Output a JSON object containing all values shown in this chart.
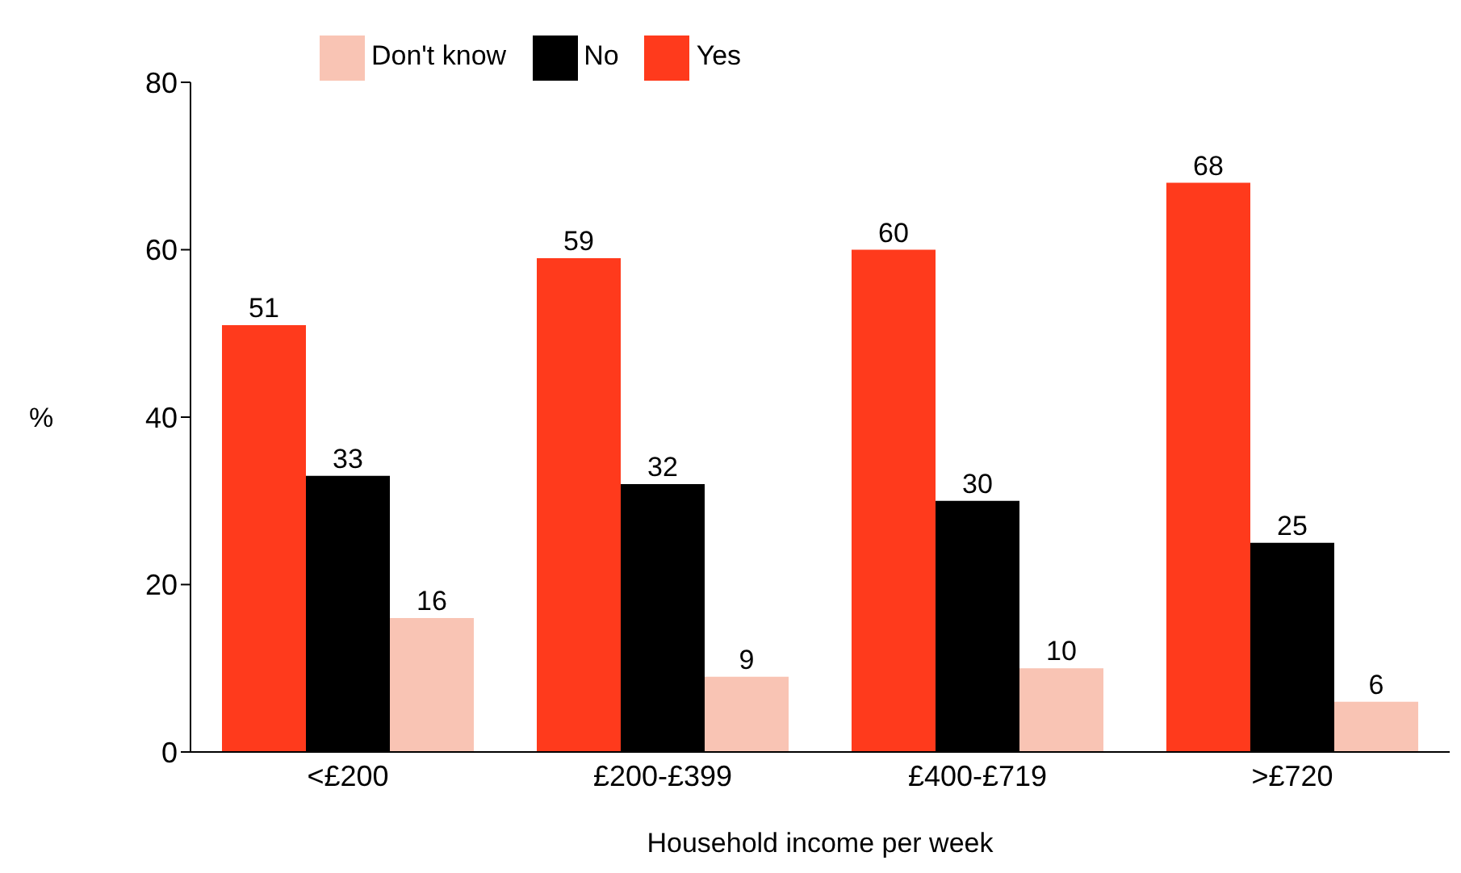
{
  "chart_data": {
    "type": "bar",
    "xlabel": "Household income per week",
    "ylabel": "%",
    "categories": [
      "<£200",
      "£200-£399",
      "£400-£719",
      ">£720"
    ],
    "series": [
      {
        "name": "Yes",
        "color": "#ff3a1c",
        "values": [
          51,
          59,
          60,
          68
        ]
      },
      {
        "name": "No",
        "color": "#000000",
        "values": [
          33,
          32,
          30,
          25
        ]
      },
      {
        "name": "Don't know",
        "color": "#f9c4b4",
        "values": [
          16,
          9,
          10,
          6
        ]
      }
    ],
    "ylim": [
      0,
      80
    ],
    "yticks": [
      0,
      20,
      40,
      60,
      80
    ],
    "grid": false,
    "legend": "top",
    "data_labels": true
  }
}
